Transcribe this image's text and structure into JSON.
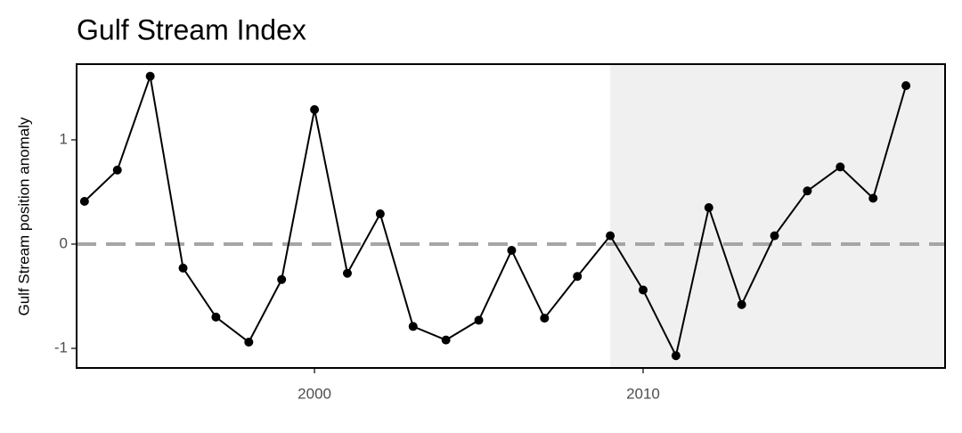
{
  "chart_data": {
    "type": "line",
    "title": "Gulf Stream Index",
    "y_label": "Gulf Stream position anomaly",
    "x": [
      1993,
      1994,
      1995,
      1996,
      1997,
      1998,
      1999,
      2000,
      2001,
      2002,
      2003,
      2004,
      2005,
      2006,
      2007,
      2008,
      2009,
      2010,
      2011,
      2012,
      2013,
      2014,
      2015,
      2016,
      2017,
      2018
    ],
    "series": [
      {
        "color": "#000000",
        "values": [
          0.41,
          0.71,
          1.61,
          -0.23,
          -0.7,
          -0.94,
          -0.34,
          1.29,
          -0.28,
          0.29,
          -0.79,
          -0.92,
          -0.73,
          -0.06,
          -0.71,
          -0.31,
          0.08,
          -0.44,
          -1.07,
          0.35,
          -0.58,
          0.08,
          0.51,
          0.74,
          0.44,
          1.52
        ]
      }
    ],
    "xlim": [
      1992.76,
      2019.19
    ],
    "xticks": [
      2000,
      2010
    ],
    "ylim": [
      -1.188,
      1.726
    ],
    "yticks": [
      -1,
      0,
      1
    ],
    "reference_line": 0,
    "reference_color": "#a6a6a6",
    "shaded_from": 2009,
    "shade_color": "#f0f0f0"
  }
}
